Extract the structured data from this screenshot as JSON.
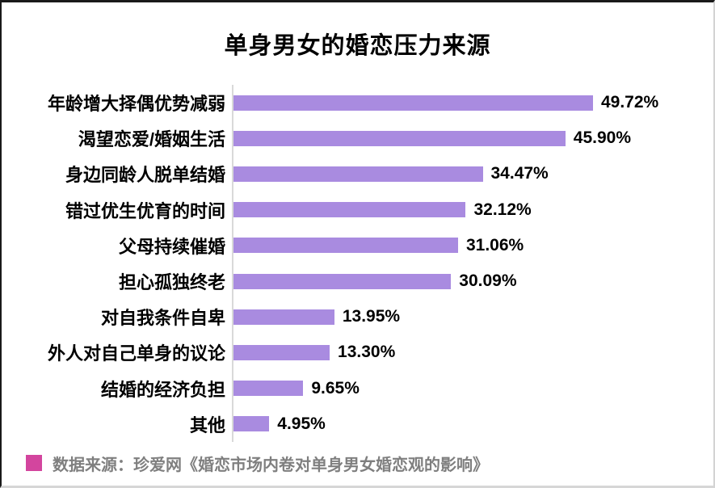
{
  "title": "单身男女的婚恋压力来源",
  "colors": {
    "bar": "#A98BE0",
    "axis_line": "#D9D9D9",
    "legend_swatch": "#D3459E",
    "source_text": "#7F7F7F",
    "title_text": "#000000"
  },
  "chart_data": {
    "type": "bar",
    "orientation": "horizontal",
    "title": "单身男女的婚恋压力来源",
    "categories": [
      "年龄增大择偶优势减弱",
      "渴望恋爱/婚姻生活",
      "身边同龄人脱单结婚",
      "错过优生优育的时间",
      "父母持续催婚",
      "担心孤独终老",
      "对自我条件自卑",
      "外人对自己单身的议论",
      "结婚的经济负担",
      "其他"
    ],
    "values": [
      49.72,
      45.9,
      34.47,
      32.12,
      31.06,
      30.09,
      13.95,
      13.3,
      9.65,
      4.95
    ],
    "value_labels": [
      "49.72%",
      "45.90%",
      "34.47%",
      "32.12%",
      "31.06%",
      "30.09%",
      "13.95%",
      "13.30%",
      "9.65%",
      "4.95%"
    ],
    "unit": "%",
    "xlim": [
      0,
      55.5
    ],
    "grid": false,
    "data_label_position": "outside-end",
    "bar_color": "#A98BE0",
    "legend_position": "none"
  },
  "source": {
    "text": "数据来源：珍爱网《婚恋市场内卷对单身男女婚恋观的影响》"
  }
}
